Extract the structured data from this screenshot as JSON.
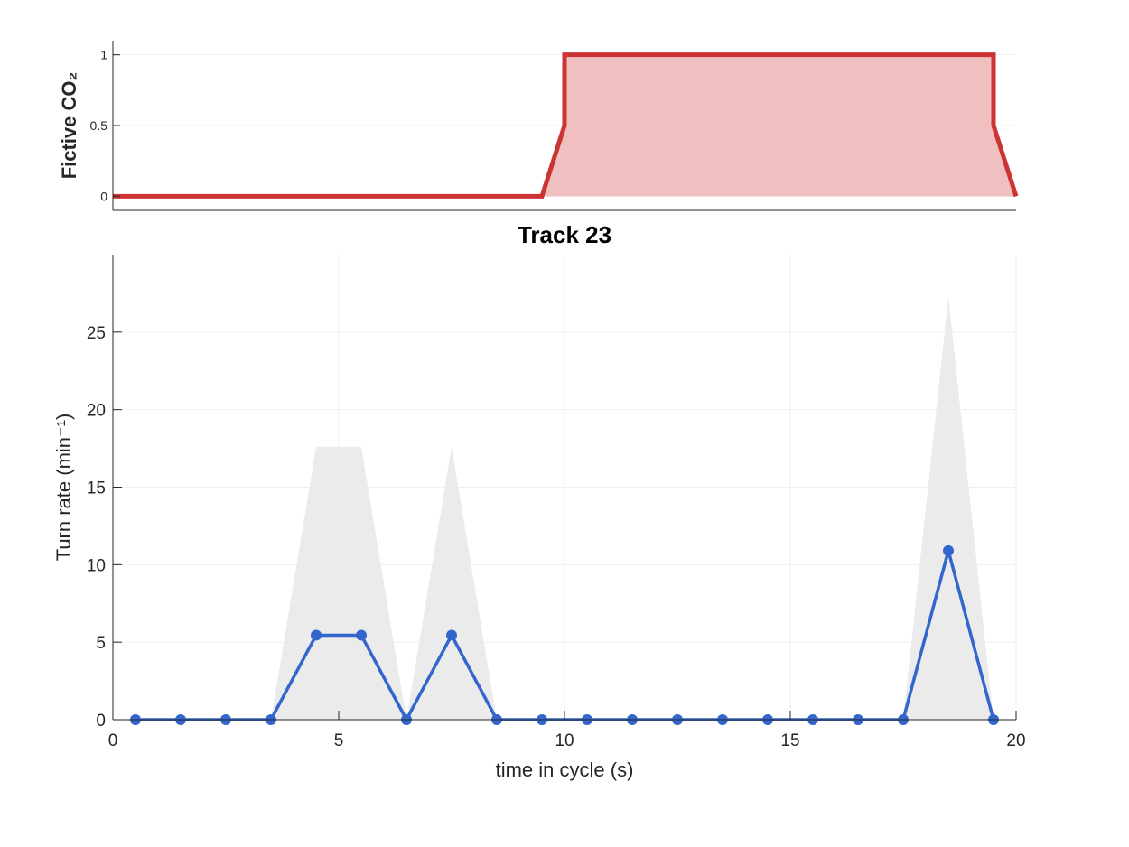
{
  "chart_data": [
    {
      "type": "area",
      "ylabel": "Fictive CO₂",
      "xlim": [
        0,
        20
      ],
      "ylim": [
        -0.1,
        1.1
      ],
      "yticks": [
        0,
        0.5,
        1
      ],
      "ytick_labels": [
        "0",
        "0.5",
        "1"
      ],
      "grid": true,
      "colors": {
        "line": "#cc3333",
        "fill": "#f0c0c0"
      },
      "x": [
        0,
        9.5,
        10,
        10,
        19.5,
        19.5,
        20
      ],
      "y": [
        0,
        0,
        0.5,
        1,
        1,
        0.5,
        0
      ]
    },
    {
      "type": "line",
      "title": "Track 23",
      "xlabel": "time in cycle (s)",
      "ylabel": "Turn rate (min⁻¹)",
      "xlim": [
        0,
        20
      ],
      "ylim": [
        0,
        30
      ],
      "xticks": [
        0,
        5,
        10,
        15,
        20
      ],
      "xtick_labels": [
        "0",
        "5",
        "10",
        "15",
        "20"
      ],
      "yticks": [
        0,
        5,
        10,
        15,
        20,
        25
      ],
      "ytick_labels": [
        "0",
        "5",
        "10",
        "15",
        "20",
        "25"
      ],
      "grid": true,
      "colors": {
        "line": "#3366cc",
        "band": "#ebebeb"
      },
      "series": [
        {
          "x": [
            0.5,
            1.5,
            2.5,
            3.5,
            4.5,
            5.5,
            6.5,
            7.5,
            8.5,
            9.5,
            10.5,
            11.5,
            12.5,
            13.5,
            14.5,
            15.5,
            16.5,
            17.5,
            18.5,
            19.5
          ],
          "values": [
            0,
            0,
            0,
            0,
            5.45,
            5.45,
            0,
            5.45,
            0,
            0,
            0,
            0,
            0,
            0,
            0,
            0,
            0,
            0,
            10.9,
            0
          ]
        }
      ],
      "band": {
        "x": [
          0.5,
          1.5,
          2.5,
          3.5,
          4.5,
          5.5,
          6.5,
          7.5,
          8.5,
          9.5,
          10.5,
          11.5,
          12.5,
          13.5,
          14.5,
          15.5,
          16.5,
          17.5,
          18.5,
          19.5
        ],
        "upper": [
          0,
          0,
          0,
          0,
          17.6,
          17.6,
          0,
          17.6,
          0,
          0,
          0,
          0,
          0,
          0,
          0,
          0,
          0,
          0,
          27.3,
          0
        ]
      }
    }
  ]
}
